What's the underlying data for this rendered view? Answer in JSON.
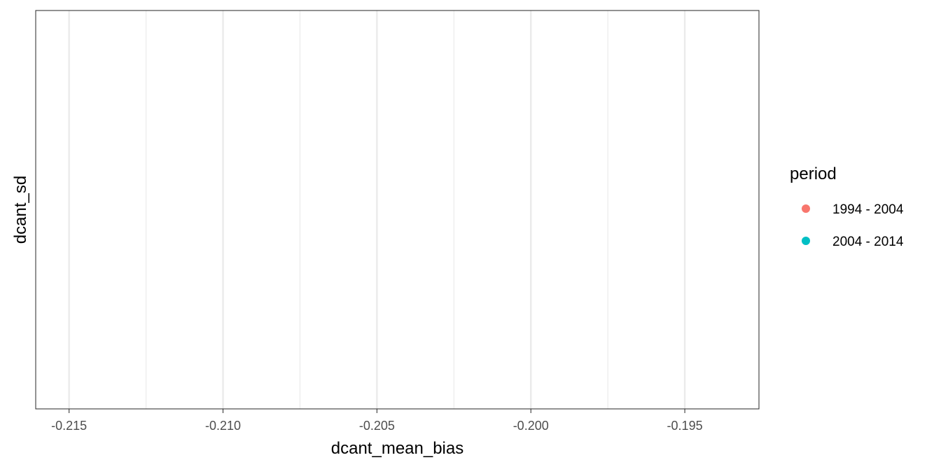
{
  "chart_data": {
    "type": "scatter",
    "title": "",
    "xlabel": "dcant_mean_bias",
    "ylabel": "dcant_sd",
    "xlim": [
      -0.216084,
      -0.192591
    ],
    "x_major_ticks": [
      -0.215,
      -0.21,
      -0.205,
      -0.2,
      -0.195
    ],
    "x_minor_ticks": [
      -0.2125,
      -0.2075,
      -0.2025,
      -0.1975,
      -0.1925
    ],
    "x_tick_labels": [
      "-0.215",
      "-0.210",
      "-0.205",
      "-0.200",
      "-0.195"
    ],
    "y_tick_labels": [],
    "grid": true,
    "theme": "bw",
    "legend_position": "right",
    "legend_title": "period",
    "series": [
      {
        "name": "1994 - 2004",
        "color": "#F8766D",
        "points": []
      },
      {
        "name": "2004 - 2014",
        "color": "#00BFC4",
        "points": []
      }
    ]
  }
}
